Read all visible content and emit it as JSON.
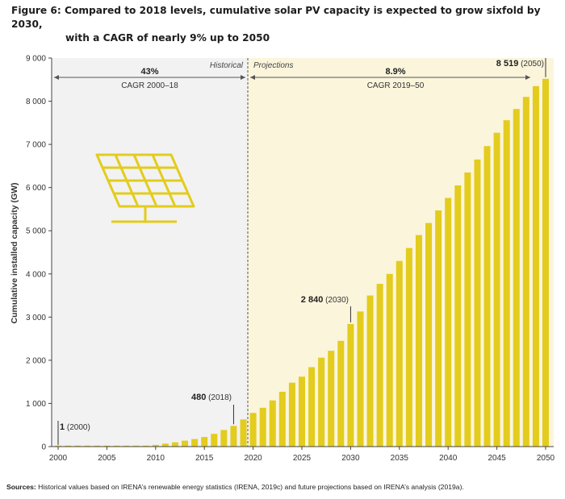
{
  "figure": {
    "title_line1": "Figure 6: Compared to 2018 levels, cumulative solar PV capacity is expected to grow sixfold by 2030,",
    "title_line2": "with a CAGR of nearly 9% up to 2050",
    "sources_label": "Sources:",
    "sources_text": " Historical values based on IRENA’s renewable energy statistics (IRENA, 2019c) and future projections based on IRENA’s analysis (2019a).",
    "icon": "solar-panel-icon"
  },
  "colors": {
    "bar": "#e3cc1d",
    "historical_bg": "#f2f2f2",
    "projection_bg": "#fbf5dc",
    "icon": "#e3cc1d"
  },
  "chart_data": {
    "type": "bar",
    "title": "Figure 6: Compared to 2018 levels, cumulative solar PV capacity is expected to grow sixfold by 2030, with a CAGR of nearly 9% up to 2050",
    "ylabel": "Cumulative installed capacity (GW)",
    "xlabel": "",
    "ylim": [
      0,
      9000
    ],
    "yticks": [
      0,
      1000,
      2000,
      3000,
      4000,
      5000,
      6000,
      7000,
      8000,
      9000
    ],
    "ytick_labels": [
      "0",
      "1 000",
      "2 000",
      "3 000",
      "4 000",
      "5 000",
      "6 000",
      "7 000",
      "8 000",
      "9 000"
    ],
    "xticks": [
      "2000",
      "2005",
      "2010",
      "2015",
      "2020",
      "2025",
      "2030",
      "2035",
      "2040",
      "2045",
      "2050"
    ],
    "grid": false,
    "categories": [
      2000,
      2001,
      2002,
      2003,
      2004,
      2005,
      2006,
      2007,
      2008,
      2009,
      2010,
      2011,
      2012,
      2013,
      2014,
      2015,
      2016,
      2017,
      2018,
      2019,
      2020,
      2021,
      2022,
      2023,
      2024,
      2025,
      2026,
      2027,
      2028,
      2029,
      2030,
      2031,
      2032,
      2033,
      2034,
      2035,
      2036,
      2037,
      2038,
      2039,
      2040,
      2041,
      2042,
      2043,
      2044,
      2045,
      2046,
      2047,
      2048,
      2049,
      2050
    ],
    "values": [
      1,
      2,
      2,
      3,
      4,
      5,
      7,
      9,
      15,
      23,
      40,
      70,
      100,
      137,
      175,
      223,
      295,
      385,
      480,
      630,
      780,
      900,
      1070,
      1270,
      1480,
      1620,
      1840,
      2060,
      2220,
      2450,
      2840,
      3130,
      3500,
      3770,
      4000,
      4300,
      4600,
      4900,
      5180,
      5470,
      5760,
      6050,
      6350,
      6650,
      6960,
      7270,
      7560,
      7820,
      8100,
      8350,
      8519
    ],
    "regions": [
      {
        "name": "Historical",
        "from": 2000,
        "to": 2018,
        "cagr_value": "43%",
        "cagr_label": "CAGR 2000–18"
      },
      {
        "name": "Projections",
        "from": 2019,
        "to": 2050,
        "cagr_value": "8.9%",
        "cagr_label": "CAGR 2019–50"
      }
    ],
    "annotations": [
      {
        "year": 2000,
        "value_text": "1",
        "year_text": " (2000)"
      },
      {
        "year": 2018,
        "value_text": "480",
        "year_text": " (2018)"
      },
      {
        "year": 2030,
        "value_text": "2 840",
        "year_text": " (2030)"
      },
      {
        "year": 2050,
        "value_text": "8 519",
        "year_text": " (2050)"
      }
    ]
  }
}
